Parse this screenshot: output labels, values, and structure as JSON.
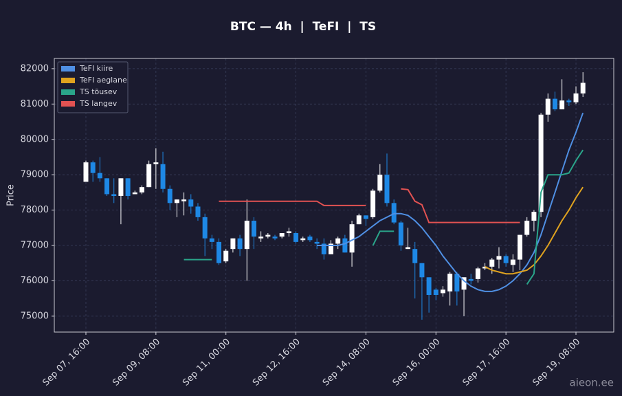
{
  "chart_data": {
    "type": "candlestick",
    "title": "BTC — 4h  |  TeFI  |  TS",
    "ylabel": "Price",
    "watermark": "aieon.ee",
    "grid": true,
    "legend": "upper left",
    "ylim": [
      74550,
      82290
    ],
    "yticks": [
      75000,
      76000,
      77000,
      78000,
      79000,
      80000,
      81000,
      82000
    ],
    "up_color": "#ffffff",
    "down_color": "#1e88e5",
    "categories": [
      "Sep 07, 16:00",
      null,
      null,
      null,
      null,
      null,
      null,
      null,
      null,
      null,
      "Sep 09, 08:00",
      null,
      null,
      null,
      null,
      null,
      null,
      null,
      null,
      null,
      "Sep 11, 00:00",
      null,
      null,
      null,
      null,
      null,
      null,
      null,
      null,
      null,
      "Sep 12, 16:00",
      null,
      null,
      null,
      null,
      null,
      null,
      null,
      null,
      null,
      "Sep 14, 08:00",
      null,
      null,
      null,
      null,
      null,
      null,
      null,
      null,
      null,
      "Sep 16, 00:00",
      null,
      null,
      null,
      null,
      null,
      null,
      null,
      null,
      null,
      "Sep 17, 16:00",
      null,
      null,
      null,
      null,
      null,
      null,
      null,
      null,
      null,
      "Sep 19, 08:00",
      null
    ],
    "open": [
      78800,
      79350,
      79050,
      78900,
      78450,
      78400,
      78900,
      78450,
      78500,
      78650,
      79300,
      79300,
      78600,
      78200,
      78250,
      78300,
      78100,
      77800,
      77200,
      77100,
      76550,
      76900,
      77200,
      76900,
      77700,
      77200,
      77250,
      77250,
      77250,
      77350,
      77350,
      77150,
      77250,
      77100,
      77050,
      76750,
      77050,
      77200,
      76800,
      77600,
      77850,
      77800,
      78550,
      79000,
      78200,
      77650,
      76900,
      76900,
      76500,
      76100,
      75750,
      75650,
      75700,
      76200,
      75750,
      76050,
      76050,
      76350,
      76400,
      76600,
      76700,
      76450,
      76600,
      77300,
      77700,
      77950,
      80700,
      81150,
      80850,
      81100,
      81050,
      81300
    ],
    "high": [
      79400,
      79400,
      79500,
      78900,
      78900,
      78900,
      78900,
      78550,
      78700,
      79400,
      79750,
      79650,
      78700,
      78300,
      78500,
      78450,
      78200,
      77900,
      77300,
      77200,
      76900,
      77200,
      77300,
      78300,
      77800,
      77400,
      77350,
      77300,
      77350,
      77500,
      77400,
      77250,
      77300,
      77200,
      77200,
      77150,
      77250,
      77300,
      77700,
      77900,
      77850,
      78600,
      79300,
      79600,
      78300,
      77700,
      77500,
      77100,
      76500,
      76100,
      75800,
      75850,
      76250,
      76250,
      76100,
      76200,
      76400,
      76500,
      76650,
      76950,
      76750,
      76750,
      77300,
      77800,
      78000,
      80750,
      81300,
      81350,
      81700,
      81150,
      81500,
      81900
    ],
    "low": [
      78800,
      78800,
      78800,
      78400,
      78200,
      77600,
      78300,
      78450,
      78450,
      78650,
      78600,
      78500,
      78000,
      77800,
      77850,
      77900,
      77700,
      76700,
      76900,
      76450,
      76500,
      76800,
      76700,
      76000,
      76900,
      77100,
      77200,
      77150,
      77200,
      77250,
      77050,
      77100,
      77100,
      76900,
      76600,
      76750,
      76900,
      76800,
      76400,
      77600,
      77550,
      77750,
      78500,
      78100,
      77600,
      76850,
      76900,
      75500,
      74900,
      75100,
      75450,
      75550,
      75300,
      75300,
      75000,
      75900,
      75950,
      76300,
      76200,
      76350,
      76400,
      76250,
      76300,
      77250,
      77400,
      77800,
      80500,
      80800,
      80850,
      80950,
      81000,
      81200
    ],
    "close": [
      79350,
      79050,
      78900,
      78450,
      78400,
      78900,
      78400,
      78500,
      78650,
      79300,
      79350,
      78600,
      78200,
      78300,
      78300,
      78100,
      77800,
      77200,
      77100,
      76500,
      76850,
      77200,
      76900,
      77700,
      77250,
      77250,
      77300,
      77200,
      77350,
      77400,
      77100,
      77200,
      77150,
      77050,
      76750,
      77050,
      77200,
      76800,
      77600,
      77850,
      77750,
      78550,
      79000,
      78200,
      77650,
      77000,
      76950,
      76500,
      76100,
      75600,
      75600,
      75750,
      76200,
      75700,
      76100,
      76000,
      76350,
      76400,
      76600,
      76700,
      76500,
      76600,
      77300,
      77700,
      77950,
      80700,
      81150,
      80850,
      81100,
      81050,
      81300,
      81600
    ],
    "series": [
      {
        "name": "TeFI kiire",
        "color": "#4f8fe3",
        "values": [
          null,
          null,
          null,
          null,
          null,
          null,
          null,
          null,
          null,
          null,
          null,
          null,
          null,
          null,
          null,
          null,
          null,
          null,
          null,
          null,
          null,
          null,
          null,
          null,
          null,
          null,
          null,
          null,
          null,
          null,
          null,
          null,
          null,
          77000,
          77000,
          77000,
          77000,
          77050,
          77150,
          77250,
          77400,
          77550,
          77700,
          77800,
          77900,
          77900,
          77850,
          77700,
          77500,
          77250,
          77000,
          76700,
          76450,
          76200,
          76000,
          75850,
          75750,
          75700,
          75700,
          75750,
          75850,
          76000,
          76200,
          76450,
          76800,
          77300,
          77900,
          78500,
          79100,
          79700,
          80200,
          80750
        ]
      },
      {
        "name": "TeFI aeglane",
        "color": "#e0a31f",
        "values": [
          null,
          null,
          null,
          null,
          null,
          null,
          null,
          null,
          null,
          null,
          null,
          null,
          null,
          null,
          null,
          null,
          null,
          null,
          null,
          null,
          null,
          null,
          null,
          null,
          null,
          null,
          null,
          null,
          null,
          null,
          null,
          null,
          null,
          null,
          null,
          null,
          null,
          null,
          null,
          null,
          null,
          null,
          null,
          null,
          null,
          null,
          null,
          null,
          null,
          null,
          null,
          null,
          null,
          null,
          null,
          null,
          null,
          76400,
          76300,
          76250,
          76200,
          76200,
          76250,
          76300,
          76450,
          76700,
          77000,
          77350,
          77700,
          78000,
          78350,
          78650
        ]
      },
      {
        "name": "TS tõusev",
        "color": "#2aa58a",
        "values": [
          null,
          null,
          null,
          null,
          null,
          null,
          null,
          null,
          null,
          null,
          null,
          null,
          null,
          null,
          76600,
          76600,
          76600,
          76600,
          76600,
          null,
          null,
          null,
          null,
          null,
          null,
          null,
          null,
          null,
          null,
          null,
          null,
          null,
          null,
          null,
          null,
          null,
          null,
          null,
          null,
          null,
          null,
          77000,
          77400,
          77400,
          77400,
          null,
          null,
          null,
          null,
          null,
          null,
          null,
          null,
          null,
          null,
          null,
          null,
          null,
          null,
          null,
          null,
          null,
          null,
          75900,
          76200,
          78500,
          79000,
          79000,
          79000,
          79050,
          79400,
          79700
        ]
      },
      {
        "name": "TS langev",
        "color": "#e25252",
        "values": [
          null,
          null,
          null,
          null,
          null,
          null,
          null,
          null,
          null,
          null,
          null,
          null,
          null,
          null,
          null,
          null,
          null,
          null,
          null,
          78250,
          78250,
          78250,
          78250,
          78250,
          78250,
          78250,
          78250,
          78250,
          78250,
          78250,
          78250,
          78250,
          78250,
          78250,
          78130,
          78130,
          78130,
          78130,
          78130,
          78130,
          78130,
          null,
          null,
          null,
          null,
          78600,
          78580,
          78250,
          78150,
          77650,
          77650,
          77650,
          77650,
          77650,
          77650,
          77650,
          77650,
          77650,
          77650,
          77650,
          77650,
          77650,
          77650,
          null,
          null,
          null,
          null,
          null,
          null,
          null,
          null,
          null
        ]
      }
    ]
  }
}
